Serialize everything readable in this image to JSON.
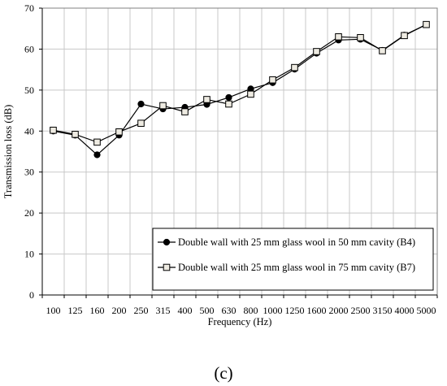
{
  "chart_data": {
    "type": "line",
    "xlabel": "Frequency (Hz)",
    "ylabel": "Transmission loss (dB)",
    "ylim": [
      0,
      70
    ],
    "yticks": [
      0,
      10,
      20,
      30,
      40,
      50,
      60,
      70
    ],
    "grid": true,
    "legend_placement": "bottom-right",
    "categories": [
      "100",
      "125",
      "160",
      "200",
      "250",
      "315",
      "400",
      "500",
      "630",
      "800",
      "1000",
      "1250",
      "1600",
      "2000",
      "2500",
      "3150",
      "4000",
      "5000"
    ],
    "series": [
      {
        "name": "Double wall with 25 mm glass wool in 50 mm cavity (B4)",
        "marker": "filled-circle",
        "color": "#000000",
        "values": [
          40.0,
          39.0,
          34.2,
          39.0,
          46.6,
          45.4,
          45.8,
          46.5,
          48.2,
          50.3,
          51.8,
          55.1,
          59.0,
          62.2,
          62.4,
          59.7,
          63.4,
          66.0
        ]
      },
      {
        "name": "Double wall with 25 mm glass wool in 75 mm cavity (B7)",
        "marker": "open-square",
        "color": "#eeebe2",
        "values": [
          40.2,
          39.2,
          37.3,
          39.8,
          41.9,
          46.2,
          44.7,
          47.7,
          46.6,
          49.0,
          52.5,
          55.5,
          59.4,
          63.0,
          62.8,
          59.6,
          63.3,
          66.0
        ]
      }
    ]
  },
  "panel_label": "(c)"
}
